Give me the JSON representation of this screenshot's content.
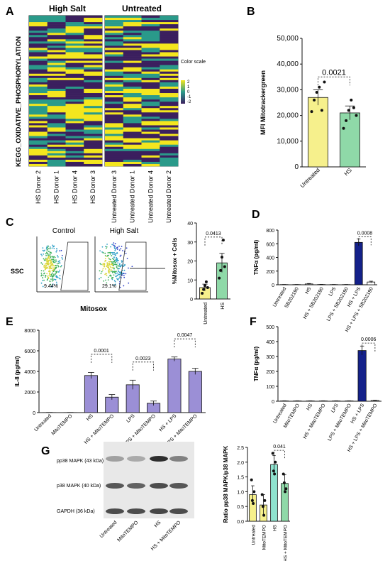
{
  "panels": {
    "A": {
      "letter": "A",
      "group_titles": [
        "High Salt",
        "Untreated"
      ],
      "ylabel": "KEGG_OXIDATIVE_PHOSPHORYLATION",
      "hs_columns": [
        "HS Donor 2",
        "HS Donor 1",
        "HS Donor 4",
        "HS Donor 3"
      ],
      "untreated_columns": [
        "Untreated Donor 3",
        "Untreated Donor 1",
        "Untreated Donor 4",
        "Untreated Donor 2"
      ],
      "legend_title": "Color scale",
      "legend_ticks": [
        "2",
        "1",
        "0",
        "-1",
        "-2"
      ],
      "colors": {
        "high": "#f4e61e",
        "mid": "#2a9a8a",
        "low": "#3b1f5e"
      }
    },
    "B": {
      "letter": "B"
    },
    "C": {
      "letter": "C",
      "flow_titles": [
        "Control",
        "High Salt"
      ],
      "flow_percents": [
        "9.44%",
        "29.1%"
      ],
      "ssc_label": "SSC",
      "xlabel": "Mitosox"
    },
    "D": {
      "letter": "D"
    },
    "E": {
      "letter": "E"
    },
    "F": {
      "letter": "F"
    },
    "G": {
      "letter": "G",
      "blot_rows": [
        "pp38 MAPK (43 kDa)",
        "p38 MAPK (40 kDa)",
        "GAPDH (36 kDa)"
      ],
      "blot_lanes": [
        "Untreated",
        "MitoTEMPO",
        "HS",
        "HS + MitoTEMPO"
      ]
    }
  },
  "chart_data": [
    {
      "id": "B",
      "type": "bar",
      "categories": [
        "Untreated",
        "HS"
      ],
      "values": [
        27000,
        21000
      ],
      "errors": [
        3000,
        2700
      ],
      "points": [
        [
          21500,
          26000,
          29000,
          31000,
          22000,
          33000
        ],
        [
          15000,
          18000,
          22000,
          26000,
          23000,
          20000
        ]
      ],
      "ylabel": "MFI Mitotrackergreen",
      "yticks": [
        "0",
        "10,000",
        "20,000",
        "30,000",
        "40,000",
        "50,000"
      ],
      "ylim": [
        0,
        50000
      ],
      "pvalue": "0.0021",
      "colors": [
        "#f6f08c",
        "#8fd9a8"
      ]
    },
    {
      "id": "C",
      "type": "bar",
      "categories": [
        "Untreated",
        "HS"
      ],
      "values": [
        6,
        19
      ],
      "errors": [
        1.8,
        5
      ],
      "points": [
        [
          3,
          5,
          7,
          9,
          6
        ],
        [
          11,
          15,
          22,
          31,
          17
        ]
      ],
      "ylabel": "%Mitosox + Cells",
      "yticks": [
        "0",
        "10",
        "20",
        "30",
        "40"
      ],
      "ylim": [
        0,
        40
      ],
      "pvalue": "0.0413",
      "colors": [
        "#f6f08c",
        "#8fd9a8"
      ]
    },
    {
      "id": "D",
      "type": "bar",
      "categories": [
        "Untreated",
        "SB202190",
        "HS",
        "HS + SB202190",
        "LPS",
        "LPS + SB202190",
        "HS + LPS",
        "HS + LPS + SB202190"
      ],
      "values": [
        3,
        3,
        12,
        4,
        3,
        3,
        620,
        40
      ],
      "errors": [
        1,
        1,
        6,
        2,
        1,
        1,
        50,
        12
      ],
      "ylabel": "TNFα (pg/ml)",
      "yticks": [
        "0",
        "200",
        "400",
        "600",
        "800"
      ],
      "ylim": [
        0,
        800
      ],
      "pvalue": "0.0008",
      "colors": [
        "#e0e0e0",
        "#e0e0e0",
        "#e0e0e0",
        "#e0e0e0",
        "#e0e0e0",
        "#e0e0e0",
        "#14218a",
        "#ffffff"
      ]
    },
    {
      "id": "E",
      "type": "bar",
      "categories": [
        "Untreated",
        "MitoTEMPO",
        "HS",
        "HS + MitoTEMPO",
        "LPS",
        "LPS + MitoTEMPO",
        "HS + LPS",
        "HS + LPS + MitoTEMPO"
      ],
      "values": [
        10,
        10,
        3600,
        1500,
        2700,
        900,
        5200,
        4000
      ],
      "errors": [
        10,
        10,
        300,
        250,
        450,
        220,
        200,
        300
      ],
      "ylabel": "IL-8 (pg/ml)",
      "yticks": [
        "0",
        "2000",
        "4000",
        "6000",
        "8000"
      ],
      "ylim": [
        0,
        8000
      ],
      "pvalues": [
        {
          "pair": [
            2,
            3
          ],
          "text": "0.0001"
        },
        {
          "pair": [
            4,
            5
          ],
          "text": "0.0023"
        },
        {
          "pair": [
            6,
            7
          ],
          "text": "0.0047"
        }
      ],
      "colors": [
        "#ffffff",
        "#ffffff",
        "#9b8fd6",
        "#9b8fd6",
        "#9b8fd6",
        "#9b8fd6",
        "#9b8fd6",
        "#9b8fd6"
      ]
    },
    {
      "id": "F",
      "type": "bar",
      "categories": [
        "Untreated",
        "MitoTEMPO",
        "HS",
        "HS + MitoTEMPO",
        "LPS",
        "LPS + MitoTEMPO",
        "HS + LPS",
        "HS + LPS + MitoTEMPO"
      ],
      "values": [
        2,
        2,
        2,
        2,
        2,
        2,
        340,
        5
      ],
      "errors": [
        1,
        1,
        1,
        1,
        1,
        1,
        30,
        2
      ],
      "ylabel": "TNFα (pg/ml)",
      "yticks": [
        "0",
        "100",
        "200",
        "300",
        "400",
        "500"
      ],
      "ylim": [
        0,
        500
      ],
      "pvalue": "0.0006",
      "colors": [
        "#e0e0e0",
        "#e0e0e0",
        "#e0e0e0",
        "#e0e0e0",
        "#e0e0e0",
        "#e0e0e0",
        "#14218a",
        "#ffffff"
      ]
    },
    {
      "id": "G",
      "type": "bar",
      "categories": [
        "Untreated",
        "MitoTEMPO",
        "HS",
        "HS + MitoTEMPO"
      ],
      "values": [
        0.9,
        0.55,
        1.92,
        1.28
      ],
      "errors": [
        0.3,
        0.35,
        0.3,
        0.3
      ],
      "points": [
        [
          1.4,
          0.7,
          0.6,
          1.0
        ],
        [
          0.9,
          0.5,
          0.2,
          0.7
        ],
        [
          2.3,
          1.7,
          1.6,
          2.0
        ],
        [
          1.6,
          1.3,
          1.0,
          1.1
        ]
      ],
      "ylabel": "Ratio pp38 MAPK/p38 MAPK",
      "yticks": [
        "0.0",
        "0.5",
        "1.0",
        "1.5",
        "2.0",
        "2.5"
      ],
      "ylim": [
        0,
        2.5
      ],
      "pvalue": "0.041",
      "colors": [
        "#f6f08c",
        "#f6f08c",
        "#8fe3cf",
        "#8fd9a8"
      ]
    }
  ]
}
